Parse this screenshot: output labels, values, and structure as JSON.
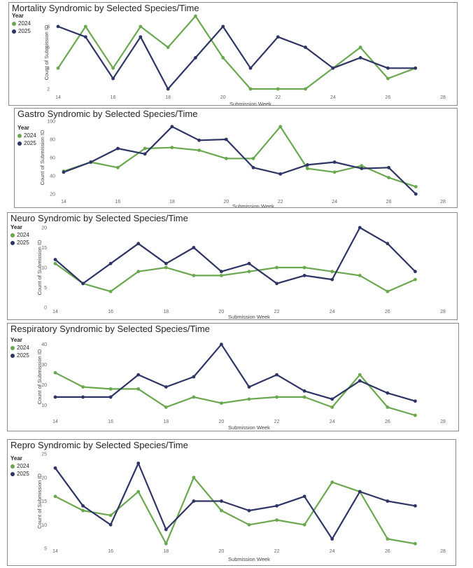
{
  "colors": {
    "y2024": "#6aa84f",
    "y2025": "#2e3465"
  },
  "chart_data": [
    {
      "type": "line",
      "title": "Mortality Syndromic by Selected Species/Time",
      "legend_title": "Year",
      "xlabel": "Submission Week",
      "ylabel": "Count of Submission ID",
      "xlim": [
        14,
        28
      ],
      "ylim": [
        2,
        9
      ],
      "x_ticks": [
        14,
        16,
        18,
        20,
        22,
        24,
        26,
        28
      ],
      "y_ticks": [
        2,
        4,
        6,
        8
      ],
      "x": [
        14,
        15,
        16,
        17,
        18,
        19,
        20,
        21,
        22,
        23,
        24,
        25,
        26,
        27
      ],
      "series": [
        {
          "name": "2024",
          "values": [
            4,
            8,
            4,
            8,
            6,
            9,
            5,
            2,
            2,
            2,
            4,
            6,
            3,
            4
          ]
        },
        {
          "name": "2025",
          "values": [
            8,
            7,
            3,
            7,
            2,
            5,
            8,
            4,
            7,
            6,
            4,
            5,
            4,
            4
          ]
        }
      ]
    },
    {
      "type": "line",
      "title": "Gastro Syndromic by Selected Species/Time",
      "legend_title": "Year",
      "xlabel": "Submission Week",
      "ylabel": "Count of Submission ID",
      "xlim": [
        14,
        28
      ],
      "ylim": [
        20,
        100
      ],
      "x_ticks": [
        14,
        16,
        18,
        20,
        22,
        24,
        26,
        28
      ],
      "y_ticks": [
        20,
        40,
        60,
        80,
        100
      ],
      "x": [
        14,
        15,
        16,
        17,
        18,
        19,
        20,
        21,
        22,
        23,
        24,
        25,
        26,
        27
      ],
      "series": [
        {
          "name": "2024",
          "values": [
            45,
            55,
            49,
            70,
            71,
            68,
            59,
            59,
            94,
            48,
            44,
            51,
            38,
            28
          ]
        },
        {
          "name": "2025",
          "values": [
            44,
            55,
            70,
            64,
            94,
            79,
            80,
            49,
            42,
            52,
            55,
            48,
            49,
            20
          ]
        }
      ]
    },
    {
      "type": "line",
      "title": "Neuro Syndromic by Selected Species/Time",
      "legend_title": "Year",
      "xlabel": "Submission Week",
      "ylabel": "Count of Submission ID",
      "xlim": [
        14,
        28
      ],
      "ylim": [
        0,
        20
      ],
      "x_ticks": [
        14,
        16,
        18,
        20,
        22,
        24,
        26,
        28
      ],
      "y_ticks": [
        0,
        5,
        10,
        15,
        20
      ],
      "x": [
        14,
        15,
        16,
        17,
        18,
        19,
        20,
        21,
        22,
        23,
        24,
        25,
        26,
        27
      ],
      "series": [
        {
          "name": "2024",
          "values": [
            11,
            6,
            4,
            9,
            10,
            8,
            8,
            9,
            10,
            10,
            9,
            8,
            4,
            7
          ]
        },
        {
          "name": "2025",
          "values": [
            12,
            6,
            11,
            16,
            11,
            15,
            9,
            11,
            6,
            8,
            7,
            20,
            16,
            9
          ]
        }
      ]
    },
    {
      "type": "line",
      "title": "Respiratory Syndromic by Selected Species/Time",
      "legend_title": "Year",
      "xlabel": "Submission Week",
      "ylabel": "Count of Submission ID",
      "xlim": [
        14,
        28
      ],
      "ylim": [
        5,
        43
      ],
      "x_ticks": [
        14,
        16,
        18,
        20,
        22,
        24,
        26,
        28
      ],
      "y_ticks": [
        10,
        20,
        30,
        40
      ],
      "x": [
        14,
        15,
        16,
        17,
        18,
        19,
        20,
        21,
        22,
        23,
        24,
        25,
        26,
        27
      ],
      "series": [
        {
          "name": "2024",
          "values": [
            26,
            19,
            18,
            18,
            9,
            14,
            11,
            13,
            14,
            14,
            9,
            25,
            9,
            5
          ]
        },
        {
          "name": "2025",
          "values": [
            14,
            14,
            14,
            25,
            19,
            24,
            40,
            19,
            25,
            17,
            13,
            22,
            16,
            12
          ]
        }
      ]
    },
    {
      "type": "line",
      "title": "Repro Syndromic by Selected Species/Time",
      "legend_title": "Year",
      "xlabel": "Submission Week",
      "ylabel": "Count of Submission ID",
      "xlim": [
        14,
        28
      ],
      "ylim": [
        5,
        25
      ],
      "x_ticks": [
        14,
        16,
        18,
        20,
        22,
        24,
        26,
        28
      ],
      "y_ticks": [
        5,
        10,
        15,
        20,
        25
      ],
      "x": [
        14,
        15,
        16,
        17,
        18,
        19,
        20,
        21,
        22,
        23,
        24,
        25,
        26,
        27
      ],
      "series": [
        {
          "name": "2024",
          "values": [
            16,
            13,
            12,
            17,
            6,
            20,
            13,
            10,
            11,
            10,
            19,
            17,
            7,
            6
          ]
        },
        {
          "name": "2025",
          "values": [
            22,
            14,
            10,
            23,
            9,
            15,
            15,
            13,
            14,
            16,
            7,
            17,
            15,
            14
          ]
        }
      ]
    }
  ]
}
